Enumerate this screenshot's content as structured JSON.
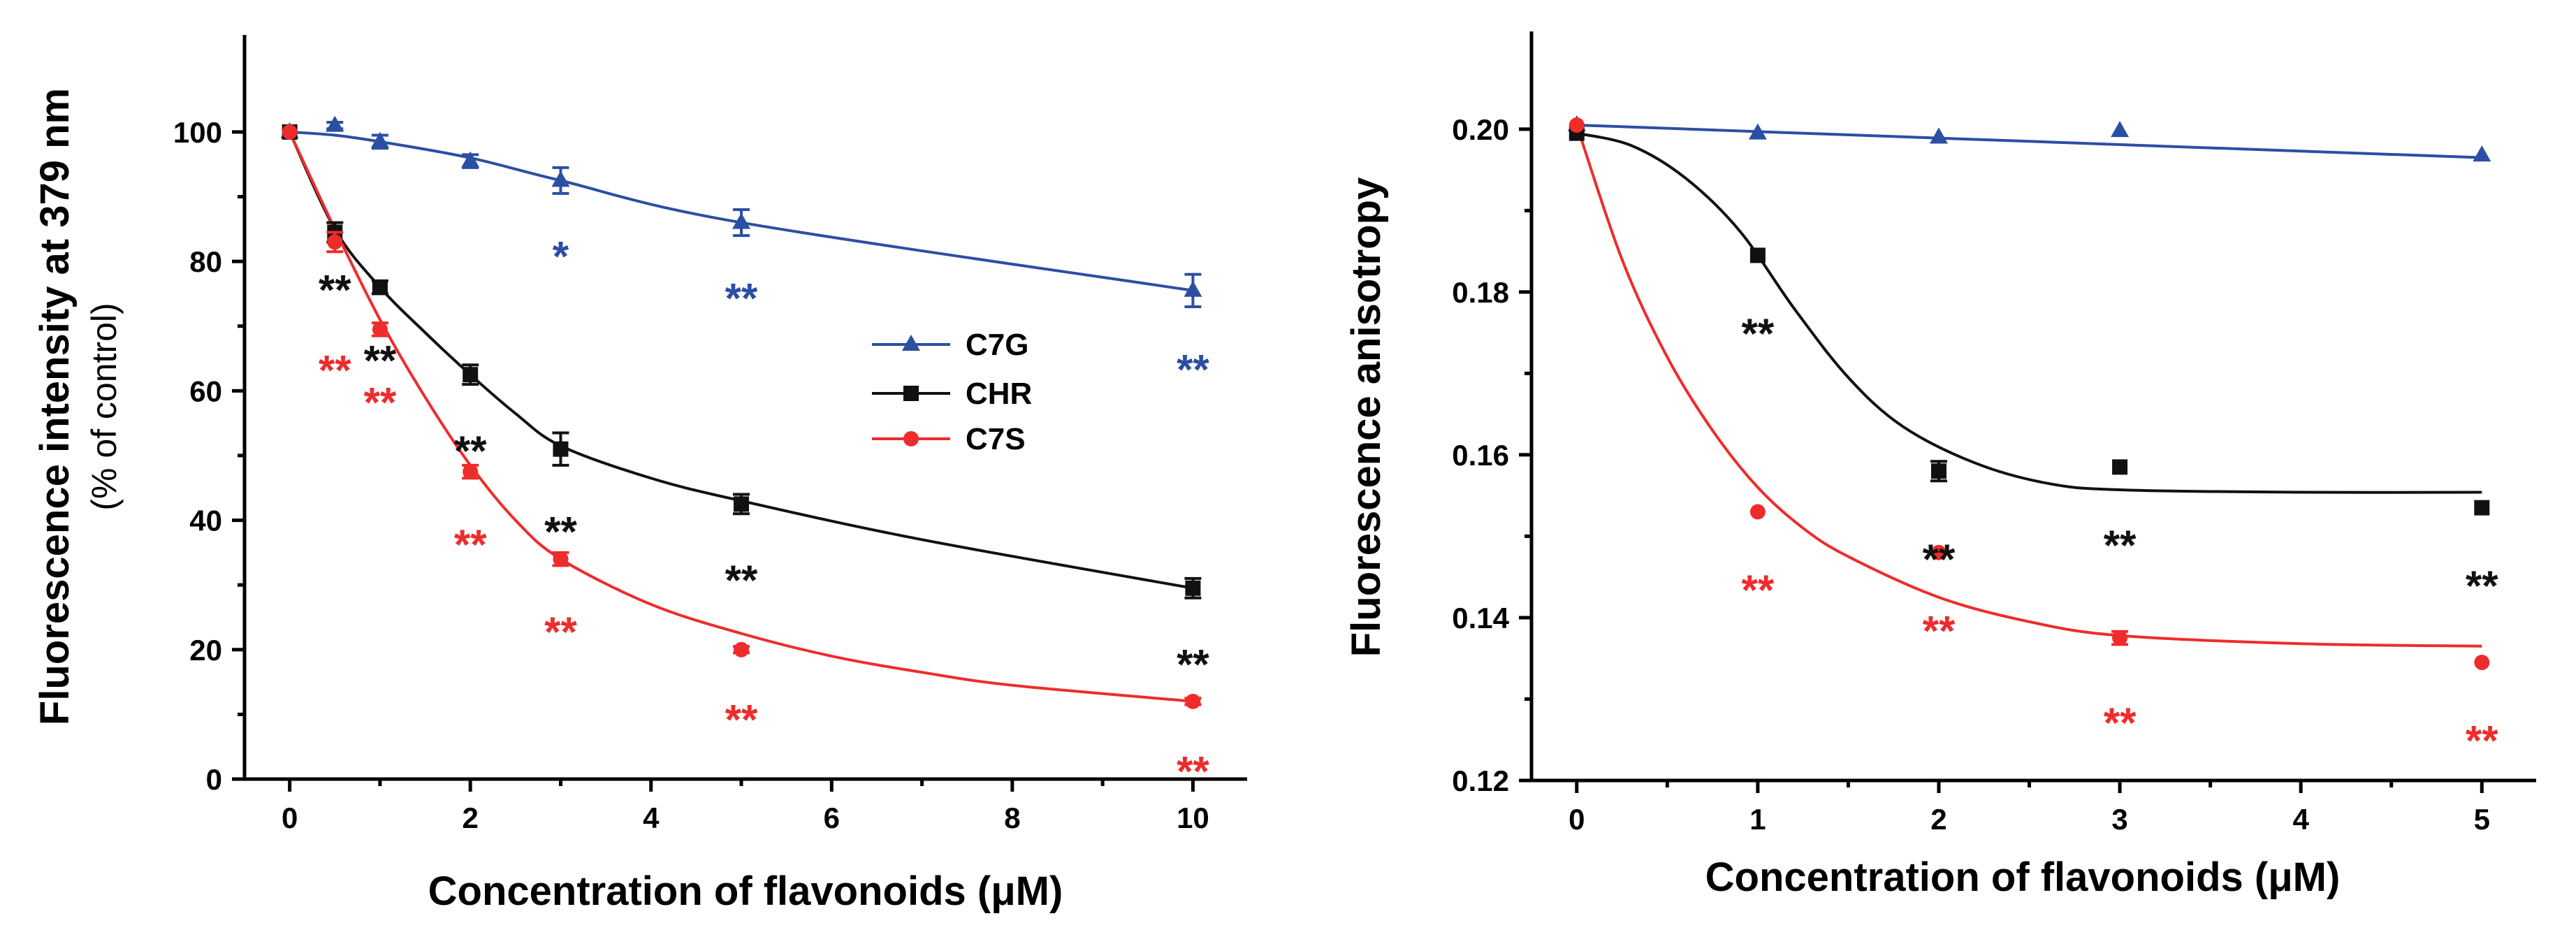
{
  "chart_data": [
    {
      "type": "line",
      "panel": "left",
      "title": "",
      "xlabel": "Concentration of flavonoids (μM)",
      "ylabel": "Fluorescence intensity at 379 nm",
      "ylabel_sub": "(% of control)",
      "xlim": [
        -0.5,
        10.6
      ],
      "ylim": [
        0,
        115
      ],
      "xticks": [
        0,
        2,
        4,
        6,
        8,
        10
      ],
      "xtick_labels": [
        "0",
        "2",
        "4",
        "6",
        "8",
        "10"
      ],
      "yticks": [
        0,
        20,
        40,
        60,
        80,
        100
      ],
      "ytick_labels": [
        "0",
        "20",
        "40",
        "60",
        "80",
        "100"
      ],
      "legend_position": "center-right",
      "series": [
        {
          "name": "C7G",
          "color": "#2b4fa3",
          "marker": "triangle",
          "x": [
            0,
            0.5,
            1,
            2,
            3,
            5,
            10
          ],
          "y": [
            100,
            101,
            98.5,
            95.5,
            92.5,
            86,
            75.5
          ],
          "err": [
            0,
            0.5,
            1,
            1,
            2,
            2,
            2.5
          ],
          "fit": {
            "x": [
              0,
              0.5,
              1,
              2,
              3,
              5,
              10
            ],
            "y": [
              100,
              99.5,
              98.5,
              96,
              92.5,
              86,
              75.5
            ]
          },
          "sig": [
            "",
            "",
            "",
            "",
            "*",
            "**",
            "**"
          ]
        },
        {
          "name": "CHR",
          "color": "#111111",
          "marker": "square",
          "x": [
            0,
            0.5,
            1,
            2,
            3,
            5,
            10
          ],
          "y": [
            100,
            84.5,
            76,
            62.5,
            51,
            42.5,
            29.5
          ],
          "err": [
            0,
            1.5,
            1,
            1.5,
            2.5,
            1.5,
            1.5
          ],
          "fit": {
            "x": [
              0,
              0.5,
              1,
              1.5,
              2,
              2.5,
              3,
              4,
              5,
              7,
              10
            ],
            "y": [
              100,
              85,
              76,
              69,
              62.5,
              56.5,
              51.5,
              46.5,
              43,
              37,
              29.5
            ]
          },
          "sig": [
            "",
            "**",
            "**",
            "**",
            "**",
            "**",
            "**"
          ]
        },
        {
          "name": "C7S",
          "color": "#ee2c2c",
          "marker": "circle",
          "x": [
            0,
            0.5,
            1,
            2,
            3,
            5,
            10
          ],
          "y": [
            100,
            83,
            69.5,
            47.5,
            34,
            20,
            12
          ],
          "err": [
            0,
            1.5,
            1,
            1,
            1,
            0.5,
            0.5
          ],
          "fit": {
            "x": [
              0,
              0.5,
              1,
              1.5,
              2,
              2.5,
              3,
              4,
              5,
              6,
              7,
              8,
              10
            ],
            "y": [
              100,
              85,
              71,
              59,
              48.5,
              40,
              34,
              27,
              22.5,
              19,
              16.5,
              14.5,
              12
            ]
          },
          "sig": [
            "",
            "**",
            "**",
            "**",
            "**",
            "**",
            "**"
          ]
        }
      ]
    },
    {
      "type": "line",
      "panel": "right",
      "title": "",
      "xlabel": "Concentration of flavonoids (μM)",
      "ylabel": "Fluorescence anisotropy",
      "xlim": [
        -0.25,
        5.3
      ],
      "ylim": [
        0.12,
        0.212
      ],
      "xticks": [
        0,
        1,
        2,
        3,
        4,
        5
      ],
      "xtick_labels": [
        "0",
        "1",
        "2",
        "3",
        "4",
        "5"
      ],
      "yticks": [
        0.12,
        0.14,
        0.16,
        0.18,
        0.2
      ],
      "ytick_labels": [
        "0.12",
        "0.14",
        "0.16",
        "0.18",
        "0.20"
      ],
      "series": [
        {
          "name": "C7G",
          "color": "#2b4fa3",
          "marker": "triangle",
          "x": [
            0,
            1,
            2,
            3,
            5
          ],
          "y": [
            0.2005,
            0.1995,
            0.199,
            0.1998,
            0.1968
          ],
          "err": [
            0,
            0,
            0,
            0,
            0
          ],
          "fit": {
            "x": [
              0,
              5
            ],
            "y": [
              0.2005,
              0.1965
            ]
          },
          "sig": [
            "",
            "",
            "",
            "",
            ""
          ]
        },
        {
          "name": "CHR",
          "color": "#111111",
          "marker": "square",
          "x": [
            0,
            1,
            2,
            3,
            5
          ],
          "y": [
            0.1995,
            0.1845,
            0.158,
            0.1585,
            0.1535
          ],
          "err": [
            0,
            0,
            0.0012,
            0,
            0
          ],
          "fit": {
            "x": [
              0,
              0.3,
              0.6,
              0.9,
              1.2,
              1.5,
              1.8,
              2.2,
              2.6,
              3,
              4,
              5
            ],
            "y": [
              0.1995,
              0.198,
              0.194,
              0.1875,
              0.178,
              0.1695,
              0.1635,
              0.159,
              0.1565,
              0.1557,
              0.1554,
              0.1554
            ]
          },
          "sig": [
            "",
            "**",
            "**",
            "**",
            "**"
          ]
        },
        {
          "name": "C7S",
          "color": "#ee2c2c",
          "marker": "circle",
          "x": [
            0,
            1,
            2,
            3,
            5
          ],
          "y": [
            0.2005,
            0.153,
            0.148,
            0.1375,
            0.1345
          ],
          "err": [
            0,
            0,
            0,
            0.0008,
            0
          ],
          "fit": {
            "x": [
              0,
              0.25,
              0.5,
              0.75,
              1,
              1.25,
              1.5,
              2,
              2.5,
              3,
              4,
              5
            ],
            "y": [
              0.2005,
              0.184,
              0.172,
              0.163,
              0.156,
              0.151,
              0.1475,
              0.1425,
              0.1395,
              0.1378,
              0.1368,
              0.1365
            ]
          },
          "sig": [
            "",
            "**",
            "**",
            "**",
            "**"
          ]
        }
      ]
    }
  ]
}
